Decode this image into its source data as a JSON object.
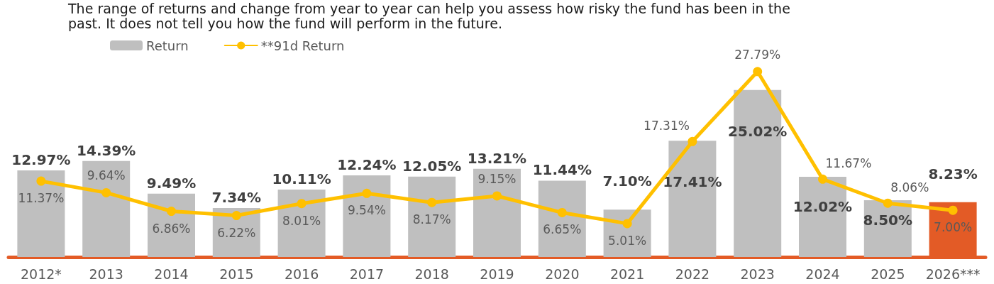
{
  "chart_data": {
    "type": "bar",
    "annotations": [
      "The range of returns and change from year to year can help you assess how risky the fund has been in the past. It does not tell you how the fund will perform in the future."
    ],
    "categories": [
      "2012*",
      "2013",
      "2014",
      "2015",
      "2016",
      "2017",
      "2018",
      "2019",
      "2020",
      "2021",
      "2022",
      "2023",
      "2024",
      "2025",
      "2026***"
    ],
    "series": [
      {
        "name": "Return",
        "color": "#bfbfbf",
        "colors": [
          "#bfbfbf",
          "#bfbfbf",
          "#bfbfbf",
          "#bfbfbf",
          "#bfbfbf",
          "#bfbfbf",
          "#bfbfbf",
          "#bfbfbf",
          "#bfbfbf",
          "#bfbfbf",
          "#bfbfbf",
          "#bfbfbf",
          "#bfbfbf",
          "#bfbfbf",
          "#e35b26"
        ],
        "values": [
          12.97,
          14.39,
          9.49,
          7.34,
          10.11,
          12.24,
          12.05,
          13.21,
          11.44,
          7.1,
          17.41,
          25.02,
          12.02,
          8.5,
          8.23
        ],
        "value_labels": [
          "12.97%",
          "14.39%",
          "9.49%",
          "7.34%",
          "10.11%",
          "12.24%",
          "12.05%",
          "13.21%",
          "11.44%",
          "7.10%",
          "17.41%",
          "25.02%",
          "12.02%",
          "8.50%",
          "8.23%"
        ]
      },
      {
        "name": "**91d Return",
        "type": "line",
        "color": "#ffc000",
        "values": [
          11.37,
          9.64,
          6.86,
          6.22,
          8.01,
          9.54,
          8.17,
          9.15,
          6.65,
          5.01,
          17.31,
          27.79,
          11.67,
          8.06,
          7.0
        ],
        "value_labels": [
          "11.37%",
          "9.64%",
          "6.86%",
          "6.22%",
          "8.01%",
          "9.54%",
          "8.17%",
          "9.15%",
          "6.65%",
          "5.01%",
          "17.31%",
          "27.79%",
          "11.67%",
          "8.06%",
          "7.00%"
        ]
      }
    ],
    "legend": "top left",
    "marker": "circle",
    "line_style": "solid",
    "tick_labels": "x"
  }
}
